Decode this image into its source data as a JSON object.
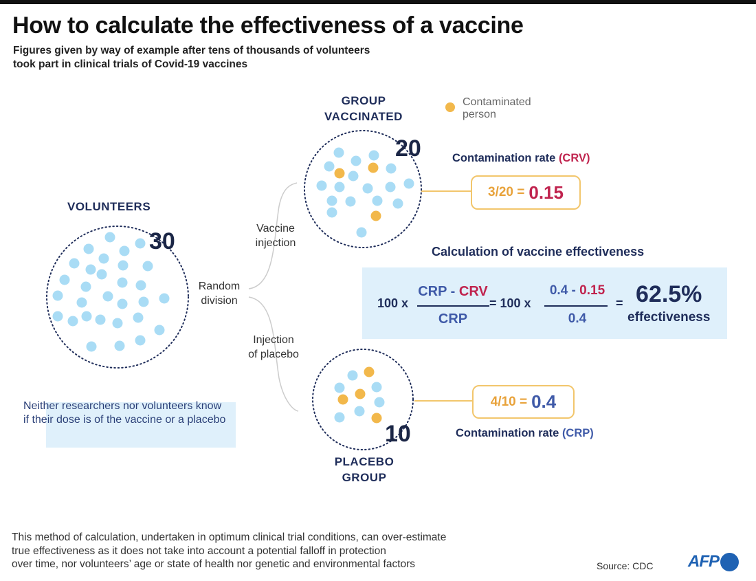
{
  "title": "How to calculate the effectiveness of a vaccine",
  "subtitle": [
    "Figures given by way of example after tens of thousands of volunteers",
    "took part in clinical trials of Covid-19 vaccines"
  ],
  "legend": {
    "label": [
      "Contaminated",
      "person"
    ],
    "color": "#f2b84b"
  },
  "colors": {
    "healthy": "#a9dcf5",
    "contaminated": "#f2b84b",
    "crv": "#c0234e",
    "crp": "#3f5aa8",
    "circle": "#1f2d5a"
  },
  "volunteers": {
    "heading": "VOLUNTEERS",
    "count": "30"
  },
  "vaccinated": {
    "heading": [
      "GROUP",
      "VACCINATED"
    ],
    "count": "20",
    "contaminated": 3
  },
  "placebo": {
    "heading": [
      "PLACEBO",
      "GROUP"
    ],
    "count": "10",
    "contaminated": 4
  },
  "branch": {
    "random": [
      "Random",
      "division"
    ],
    "vaccine": [
      "Vaccine",
      "injection"
    ],
    "placebo": [
      "Injection",
      "of placebo"
    ]
  },
  "crv_rate": {
    "label": "Contamination rate ",
    "abbr": "(CRV)",
    "fraction": "3/20 =",
    "value": "0.15"
  },
  "crp_rate": {
    "label": "Contamination rate ",
    "abbr": "(CRP)",
    "fraction": "4/10 =",
    "value": "0.4"
  },
  "formula": {
    "heading": "Calculation of vaccine effectiveness",
    "prefix": "100 x",
    "num_a": "CRP",
    "num_sep": " - ",
    "num_b": "CRV",
    "den": "CRP",
    "equals1": "= 100 x",
    "num2_a": "0.4",
    "num2_sep": " - ",
    "num2_b": "0.15",
    "den2": "0.4",
    "equals2": "=",
    "result": "62.5%",
    "result_label": "effectiveness"
  },
  "note": [
    "Neither researchers nor volunteers know",
    "if their dose is of the vaccine or a placebo"
  ],
  "footer": [
    "This method of calculation, undertaken in optimum clinical trial conditions, can over-estimate",
    "true effectiveness as it does not take into account a potential falloff in protection",
    "over time, nor volunteers’ age or state of health nor genetic and environmental factors"
  ],
  "source": "Source: CDC",
  "logo": "AFP"
}
